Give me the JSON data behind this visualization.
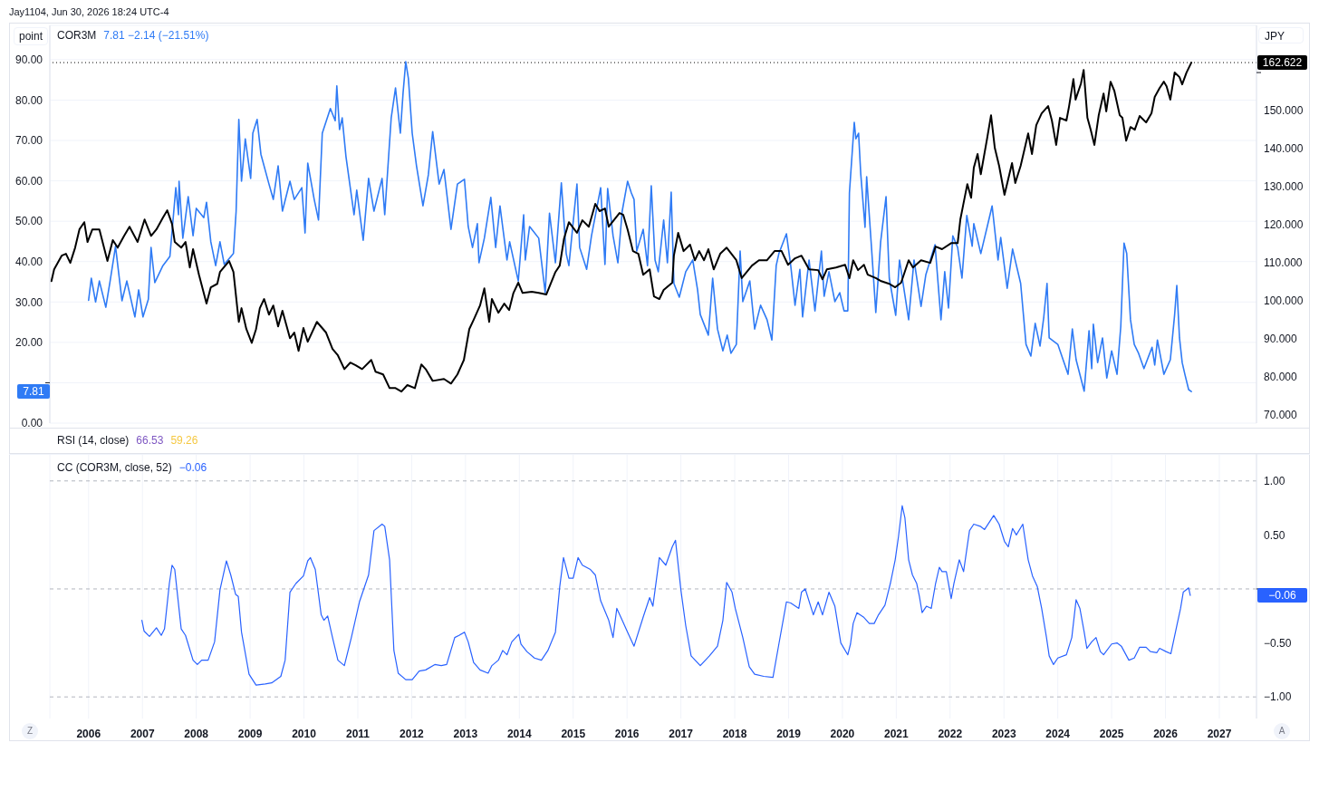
{
  "chart_data": [
    {
      "type": "line",
      "title": "COR3M",
      "subtitle": "7.81 −2.14 (−21.51%)",
      "ylabel": "point",
      "y2label": "JPY",
      "annotations": [
        "7.81",
        "162.622",
        "Jay1104, Jun 30, 2026 18:24 UTC-4"
      ],
      "xlim": [
        2005.28,
        2027.69
      ],
      "xticks": [
        2006,
        2007,
        2008,
        2009,
        2010,
        2011,
        2012,
        2013,
        2014,
        2015,
        2016,
        2017,
        2018,
        2019,
        2020,
        2021,
        2022,
        2023,
        2024,
        2025,
        2026,
        2027
      ],
      "ylim": [
        0,
        98.5
      ],
      "yticks": [
        {
          "value": 0,
          "label": "0.00"
        },
        {
          "value": 10,
          "label": null
        },
        {
          "value": 20,
          "label": "20.00"
        },
        {
          "value": 30,
          "label": "30.00"
        },
        {
          "value": 40,
          "label": "40.00"
        },
        {
          "value": 50,
          "label": "50.00"
        },
        {
          "value": 60,
          "label": "60.00"
        },
        {
          "value": 70,
          "label": "70.00"
        },
        {
          "value": 80,
          "label": "80.00"
        },
        {
          "value": 90,
          "label": "90.00"
        }
      ],
      "y2lim": [
        67.9,
        172.4
      ],
      "y2ticks": [
        {
          "value": 70,
          "label": "70.000"
        },
        {
          "value": 80,
          "label": "80.000"
        },
        {
          "value": 90,
          "label": "90.000"
        },
        {
          "value": 100,
          "label": "100.000"
        },
        {
          "value": 110,
          "label": "110.000"
        },
        {
          "value": 120,
          "label": "120.000"
        },
        {
          "value": 130,
          "label": "130.000"
        },
        {
          "value": 140,
          "label": "140.000"
        },
        {
          "value": 150,
          "label": "150.000"
        },
        {
          "value": 160,
          "label": null
        }
      ],
      "grid": true,
      "tick_labels": "y",
      "ref_lines": [
        {
          "axis": "y2",
          "value": 162.622,
          "color": "#000000",
          "line_style": "dotted"
        }
      ],
      "series": [
        {
          "color": "#2f7bf5",
          "axis": "y",
          "x": [
            2006.0,
            2006.05,
            2006.13,
            2006.2,
            2006.32,
            2006.4,
            2006.5,
            2006.62,
            2006.71,
            2006.86,
            2006.93,
            2007.01,
            2007.11,
            2007.16,
            2007.23,
            2007.38,
            2007.51,
            2007.62,
            2007.67,
            2007.68,
            2007.75,
            2007.85,
            2007.94,
            2008.0,
            2008.14,
            2008.19,
            2008.27,
            2008.36,
            2008.44,
            2008.52,
            2008.69,
            2008.74,
            2008.79,
            2008.84,
            2008.91,
            2009.01,
            2009.05,
            2009.13,
            2009.2,
            2009.35,
            2009.43,
            2009.52,
            2009.6,
            2009.74,
            2009.82,
            2009.96,
            2010.02,
            2010.07,
            2010.19,
            2010.27,
            2010.34,
            2010.49,
            2010.58,
            2010.61,
            2010.66,
            2010.71,
            2010.78,
            2010.86,
            2010.93,
            2010.98,
            2011.1,
            2011.2,
            2011.3,
            2011.45,
            2011.5,
            2011.62,
            2011.7,
            2011.79,
            2011.84,
            2011.89,
            2011.94,
            2012.01,
            2012.09,
            2012.21,
            2012.31,
            2012.39,
            2012.51,
            2012.6,
            2012.73,
            2012.85,
            2012.98,
            2013.05,
            2013.13,
            2013.22,
            2013.25,
            2013.35,
            2013.47,
            2013.56,
            2013.64,
            2013.77,
            2013.82,
            2013.98,
            2014.08,
            2014.11,
            2014.19,
            2014.36,
            2014.48,
            2014.56,
            2014.67,
            2014.78,
            2014.87,
            2014.92,
            2015.07,
            2015.12,
            2015.25,
            2015.34,
            2015.51,
            2015.59,
            2015.64,
            2015.74,
            2015.83,
            2015.91,
            2016.01,
            2016.08,
            2016.13,
            2016.18,
            2016.3,
            2016.38,
            2016.45,
            2016.52,
            2016.58,
            2016.68,
            2016.75,
            2016.82,
            2016.87,
            2016.97,
            2017.09,
            2017.22,
            2017.31,
            2017.36,
            2017.51,
            2017.59,
            2017.68,
            2017.78,
            2017.86,
            2017.93,
            2018.03,
            2018.1,
            2018.15,
            2018.28,
            2018.37,
            2018.48,
            2018.6,
            2018.69,
            2018.77,
            2018.82,
            2018.96,
            2019.04,
            2019.12,
            2019.21,
            2019.26,
            2019.38,
            2019.49,
            2019.61,
            2019.66,
            2019.75,
            2019.86,
            2019.95,
            2020.03,
            2020.1,
            2020.13,
            2020.22,
            2020.25,
            2020.3,
            2020.34,
            2020.42,
            2020.45,
            2020.54,
            2020.62,
            2020.71,
            2020.81,
            2020.87,
            2020.99,
            2021.06,
            2021.23,
            2021.33,
            2021.46,
            2021.55,
            2021.72,
            2021.83,
            2021.9,
            2021.97,
            2022.05,
            2022.14,
            2022.22,
            2022.31,
            2022.41,
            2022.44,
            2022.57,
            2022.69,
            2022.78,
            2022.89,
            2022.94,
            2023.06,
            2023.16,
            2023.31,
            2023.41,
            2023.5,
            2023.58,
            2023.67,
            2023.74,
            2023.8,
            2023.84,
            2024.0,
            2024.19,
            2024.27,
            2024.34,
            2024.49,
            2024.58,
            2024.63,
            2024.66,
            2024.74,
            2024.83,
            2024.91,
            2025.0,
            2025.1,
            2025.17,
            2025.23,
            2025.28,
            2025.35,
            2025.42,
            2025.5,
            2025.6,
            2025.75,
            2025.8,
            2025.85,
            2025.97,
            2026.09,
            2026.17,
            2026.21,
            2026.26,
            2026.31,
            2026.36,
            2026.43,
            2026.48
          ],
          "values": [
            30.4,
            35.9,
            30.0,
            35.2,
            28.7,
            35.2,
            43.8,
            30.3,
            35.2,
            26.3,
            33.0,
            26.3,
            30.7,
            43.5,
            34.8,
            39.0,
            41.3,
            58.3,
            51.6,
            59.9,
            45.8,
            56.1,
            46.4,
            53.2,
            50.9,
            54.7,
            44.9,
            39.0,
            44.9,
            39.3,
            42.0,
            52.5,
            75.2,
            59.9,
            70.4,
            60.6,
            71.8,
            75.2,
            66.6,
            59.2,
            55.4,
            63.7,
            52.5,
            59.9,
            55.4,
            58.3,
            47.1,
            64.4,
            55.4,
            50.3,
            71.8,
            77.9,
            74.9,
            83.5,
            72.7,
            75.6,
            66.0,
            58.3,
            51.6,
            57.7,
            45.3,
            60.6,
            52.5,
            60.6,
            51.6,
            75.6,
            83.0,
            71.8,
            81.7,
            89.5,
            85.3,
            71.8,
            63.7,
            53.8,
            61.5,
            72.2,
            59.2,
            62.8,
            48.0,
            59.2,
            60.4,
            48.7,
            43.5,
            49.4,
            39.7,
            45.8,
            55.9,
            43.5,
            53.8,
            40.4,
            44.9,
            35.2,
            51.6,
            40.4,
            48.7,
            45.8,
            32.3,
            52.0,
            39.7,
            59.5,
            42.0,
            39.0,
            59.2,
            43.5,
            38.1,
            46.4,
            58.3,
            39.3,
            58.1,
            46.4,
            39.7,
            52.5,
            59.9,
            57.0,
            55.4,
            42.6,
            48.0,
            39.0,
            58.8,
            40.4,
            37.5,
            50.3,
            39.7,
            57.2,
            34.6,
            31.2,
            37.5,
            40.4,
            33.0,
            26.9,
            21.8,
            35.9,
            23.3,
            17.9,
            21.8,
            17.3,
            19.5,
            42.6,
            30.1,
            35.2,
            23.3,
            29.2,
            25.6,
            20.6,
            39.0,
            42.0,
            46.9,
            39.0,
            29.2,
            38.1,
            26.3,
            40.4,
            27.8,
            42.6,
            31.4,
            37.5,
            30.1,
            32.3,
            27.8,
            27.8,
            57.0,
            74.5,
            70.4,
            71.8,
            61.8,
            48.5,
            61.0,
            43.5,
            27.4,
            44.9,
            56.1,
            35.9,
            26.7,
            40.4,
            25.6,
            40.4,
            28.9,
            36.8,
            44.2,
            25.6,
            37.5,
            28.5,
            46.4,
            43.5,
            35.9,
            51.4,
            43.8,
            49.4,
            42.0,
            48.7,
            53.8,
            40.4,
            46.0,
            33.4,
            43.1,
            34.6,
            19.5,
            16.6,
            24.7,
            19.1,
            26.3,
            34.6,
            21.1,
            19.5,
            12.1,
            23.3,
            15.7,
            7.9,
            22.9,
            13.5,
            24.5,
            15.0,
            21.1,
            11.2,
            17.9,
            12.1,
            24.0,
            44.6,
            42.0,
            25.6,
            19.5,
            17.3,
            13.5,
            18.8,
            14.4,
            20.6,
            12.1,
            15.7,
            26.9,
            34.1,
            21.1,
            15.0,
            12.1,
            8.3,
            7.81
          ]
        },
        {
          "color": "#000000",
          "axis": "y2",
          "x": [
            2005.31,
            2005.36,
            2005.5,
            2005.58,
            2005.66,
            2005.75,
            2005.83,
            2005.92,
            2005.98,
            2006.07,
            2006.2,
            2006.35,
            2006.45,
            2006.54,
            2006.66,
            2006.76,
            2006.91,
            2007.04,
            2007.16,
            2007.26,
            2007.38,
            2007.46,
            2007.55,
            2007.6,
            2007.72,
            2007.8,
            2007.88,
            2007.94,
            2008.05,
            2008.19,
            2008.27,
            2008.39,
            2008.44,
            2008.61,
            2008.69,
            2008.78,
            2008.79,
            2008.84,
            2008.93,
            2009.03,
            2009.11,
            2009.18,
            2009.26,
            2009.35,
            2009.43,
            2009.52,
            2009.6,
            2009.74,
            2009.82,
            2009.9,
            2009.99,
            2010.07,
            2010.24,
            2010.41,
            2010.53,
            2010.63,
            2010.75,
            2010.86,
            2010.96,
            2011.08,
            2011.25,
            2011.33,
            2011.47,
            2011.59,
            2011.7,
            2011.81,
            2011.92,
            2012.06,
            2012.18,
            2012.26,
            2012.39,
            2012.6,
            2012.73,
            2012.85,
            2012.97,
            2013.07,
            2013.15,
            2013.27,
            2013.35,
            2013.44,
            2013.49,
            2013.61,
            2013.72,
            2013.81,
            2013.89,
            2013.98,
            2014.06,
            2014.23,
            2014.36,
            2014.5,
            2014.67,
            2014.75,
            2014.83,
            2014.92,
            2015.07,
            2015.17,
            2015.29,
            2015.41,
            2015.49,
            2015.59,
            2015.66,
            2015.86,
            2015.93,
            2016.01,
            2016.11,
            2016.21,
            2016.3,
            2016.42,
            2016.5,
            2016.6,
            2016.68,
            2016.84,
            2016.87,
            2016.95,
            2017.05,
            2017.17,
            2017.26,
            2017.34,
            2017.43,
            2017.51,
            2017.61,
            2017.73,
            2017.85,
            2018.03,
            2018.13,
            2018.32,
            2018.45,
            2018.6,
            2018.74,
            2018.87,
            2018.99,
            2019.12,
            2019.24,
            2019.38,
            2019.55,
            2019.63,
            2019.71,
            2019.88,
            2020.05,
            2020.13,
            2020.2,
            2020.29,
            2020.4,
            2020.47,
            2020.62,
            2020.72,
            2020.87,
            2020.98,
            2021.09,
            2021.23,
            2021.31,
            2021.46,
            2021.63,
            2021.73,
            2021.85,
            2022.02,
            2022.14,
            2022.19,
            2022.24,
            2022.32,
            2022.39,
            2022.44,
            2022.51,
            2022.57,
            2022.69,
            2022.76,
            2022.83,
            2022.91,
            2023.01,
            2023.15,
            2023.21,
            2023.31,
            2023.4,
            2023.45,
            2023.52,
            2023.6,
            2023.7,
            2023.82,
            2023.89,
            2023.97,
            2024.04,
            2024.16,
            2024.21,
            2024.29,
            2024.33,
            2024.43,
            2024.48,
            2024.55,
            2024.61,
            2024.68,
            2024.76,
            2024.85,
            2024.9,
            2024.98,
            2025.05,
            2025.15,
            2025.2,
            2025.27,
            2025.35,
            2025.43,
            2025.52,
            2025.64,
            2025.74,
            2025.8,
            2025.89,
            2025.97,
            2026.02,
            2026.09,
            2026.17,
            2026.26,
            2026.31,
            2026.39,
            2026.48
          ],
          "values": [
            105.2,
            108.3,
            111.9,
            112.4,
            110.0,
            114.0,
            118.8,
            120.7,
            115.5,
            118.8,
            118.8,
            110.5,
            116.0,
            114.0,
            117.1,
            119.5,
            115.5,
            121.4,
            117.1,
            118.8,
            121.9,
            123.8,
            120.2,
            115.5,
            114.0,
            115.5,
            108.8,
            113.6,
            106.9,
            99.3,
            103.6,
            104.5,
            107.6,
            110.5,
            107.6,
            95.7,
            94.5,
            98.1,
            92.6,
            89.0,
            92.6,
            98.1,
            100.5,
            96.4,
            98.8,
            93.3,
            97.4,
            90.2,
            91.7,
            86.9,
            92.9,
            89.3,
            94.5,
            91.7,
            87.4,
            85.7,
            82.1,
            83.8,
            83.1,
            82.1,
            84.5,
            81.4,
            80.7,
            77.1,
            77.1,
            76.2,
            77.9,
            77.1,
            83.3,
            82.1,
            79.0,
            79.5,
            78.3,
            80.7,
            84.5,
            92.6,
            95.0,
            98.8,
            103.3,
            94.5,
            100.5,
            96.9,
            99.3,
            97.6,
            102.1,
            104.8,
            102.1,
            102.4,
            102.1,
            101.7,
            107.6,
            109.3,
            116.4,
            120.7,
            117.9,
            121.2,
            119.5,
            125.5,
            123.6,
            124.3,
            119.5,
            123.1,
            122.6,
            118.8,
            113.1,
            112.4,
            106.9,
            108.3,
            101.2,
            100.5,
            102.9,
            104.8,
            111.9,
            117.9,
            113.1,
            114.8,
            110.7,
            113.1,
            110.7,
            113.6,
            108.3,
            112.4,
            114.0,
            110.7,
            106.0,
            109.3,
            110.7,
            110.7,
            113.1,
            113.1,
            109.5,
            111.2,
            111.9,
            108.3,
            108.1,
            105.7,
            108.3,
            108.8,
            109.5,
            106.0,
            110.7,
            108.1,
            109.5,
            106.9,
            106.0,
            105.2,
            104.5,
            103.6,
            104.8,
            110.7,
            108.8,
            110.7,
            110.0,
            114.3,
            113.6,
            115.2,
            115.2,
            121.4,
            125.0,
            130.7,
            127.1,
            135.0,
            138.6,
            133.3,
            142.9,
            148.8,
            140.2,
            135.5,
            127.9,
            136.2,
            131.0,
            135.5,
            141.0,
            144.0,
            138.6,
            146.2,
            149.3,
            151.2,
            147.4,
            141.0,
            148.1,
            147.4,
            151.2,
            158.3,
            152.9,
            157.1,
            160.7,
            148.1,
            145.0,
            141.0,
            148.8,
            154.5,
            149.8,
            157.6,
            155.2,
            148.8,
            148.1,
            142.1,
            145.7,
            145.0,
            148.6,
            146.9,
            149.3,
            153.6,
            155.9,
            157.6,
            156.4,
            152.9,
            160.0,
            158.8,
            156.9,
            160.0,
            162.622
          ]
        }
      ]
    },
    {
      "type": "other",
      "title": "RSI (14, close)",
      "annotations": [
        "66.53",
        "59.26"
      ]
    },
    {
      "type": "line",
      "title": "CC (COR3M, close, 52)",
      "subtitle": "−0.06",
      "annotations": [
        "−0.06",
        "Z",
        "A"
      ],
      "xlim": [
        2005.28,
        2027.69
      ],
      "xticks": [
        2006,
        2007,
        2008,
        2009,
        2010,
        2011,
        2012,
        2013,
        2014,
        2015,
        2016,
        2017,
        2018,
        2019,
        2020,
        2021,
        2022,
        2023,
        2024,
        2025,
        2026,
        2027
      ],
      "ylim": [
        -1.2,
        1.25
      ],
      "yticks": [
        {
          "value": -1,
          "label": "−1.00"
        },
        {
          "value": -0.5,
          "label": "−0.50"
        },
        {
          "value": 0,
          "label": null
        },
        {
          "value": 0.5,
          "label": "0.50"
        },
        {
          "value": 1,
          "label": "1.00"
        }
      ],
      "grid": "x",
      "ref_lines": [
        {
          "axis": "y",
          "value": 1,
          "color": "#b2b5be",
          "line_style": "dashed"
        },
        {
          "axis": "y",
          "value": 0,
          "color": "#b2b5be",
          "line_style": "dashed"
        },
        {
          "axis": "y",
          "value": -1,
          "color": "#b2b5be",
          "line_style": "dashed"
        }
      ],
      "series": [
        {
          "color": "#2962ff",
          "x": [
            2006.99,
            2007.03,
            2007.13,
            2007.26,
            2007.35,
            2007.41,
            2007.5,
            2007.55,
            2007.6,
            2007.72,
            2007.8,
            2007.94,
            2008.02,
            2008.1,
            2008.22,
            2008.34,
            2008.44,
            2008.56,
            2008.64,
            2008.73,
            2008.78,
            2008.84,
            2008.98,
            2009.11,
            2009.28,
            2009.4,
            2009.57,
            2009.65,
            2009.74,
            2009.85,
            2009.99,
            2010.07,
            2010.12,
            2010.21,
            2010.32,
            2010.37,
            2010.44,
            2010.53,
            2010.63,
            2010.75,
            2010.88,
            2011.03,
            2011.2,
            2011.3,
            2011.45,
            2011.5,
            2011.59,
            2011.67,
            2011.75,
            2011.89,
            2012.01,
            2012.14,
            2012.26,
            2012.43,
            2012.55,
            2012.65,
            2012.8,
            2012.88,
            2012.98,
            2013.05,
            2013.15,
            2013.27,
            2013.42,
            2013.49,
            2013.61,
            2013.69,
            2013.77,
            2013.86,
            2013.99,
            2014.03,
            2014.14,
            2014.28,
            2014.41,
            2014.53,
            2014.67,
            2014.75,
            2014.82,
            2014.92,
            2015.0,
            2015.09,
            2015.17,
            2015.32,
            2015.41,
            2015.51,
            2015.66,
            2015.74,
            2015.81,
            2015.91,
            2016.01,
            2016.13,
            2016.3,
            2016.42,
            2016.48,
            2016.6,
            2016.72,
            2016.84,
            2016.9,
            2017.0,
            2017.09,
            2017.19,
            2017.36,
            2017.53,
            2017.68,
            2017.78,
            2017.85,
            2017.95,
            2018.01,
            2018.15,
            2018.27,
            2018.37,
            2018.54,
            2018.71,
            2018.82,
            2018.96,
            2019.04,
            2019.19,
            2019.24,
            2019.31,
            2019.46,
            2019.55,
            2019.63,
            2019.75,
            2019.86,
            2019.97,
            2020.1,
            2020.15,
            2020.2,
            2020.27,
            2020.39,
            2020.5,
            2020.59,
            2020.67,
            2020.79,
            2020.89,
            2020.98,
            2021.04,
            2021.11,
            2021.16,
            2021.23,
            2021.3,
            2021.38,
            2021.43,
            2021.48,
            2021.56,
            2021.65,
            2021.73,
            2021.8,
            2021.85,
            2021.93,
            2022.02,
            2022.07,
            2022.17,
            2022.25,
            2022.36,
            2022.44,
            2022.56,
            2022.64,
            2022.81,
            2022.91,
            2023.01,
            2023.08,
            2023.16,
            2023.23,
            2023.35,
            2023.45,
            2023.53,
            2023.62,
            2023.7,
            2023.79,
            2023.84,
            2023.92,
            2024.0,
            2024.16,
            2024.26,
            2024.34,
            2024.41,
            2024.49,
            2024.54,
            2024.63,
            2024.71,
            2024.79,
            2024.85,
            2025.0,
            2025.1,
            2025.18,
            2025.32,
            2025.42,
            2025.52,
            2025.64,
            2025.72,
            2025.84,
            2025.89,
            2026.01,
            2026.1,
            2026.21,
            2026.28,
            2026.33,
            2026.43,
            2026.46
          ],
          "values": [
            -0.29,
            -0.39,
            -0.44,
            -0.36,
            -0.43,
            -0.37,
            0.05,
            0.22,
            0.18,
            -0.37,
            -0.43,
            -0.66,
            -0.7,
            -0.66,
            -0.66,
            -0.49,
            -0.01,
            0.26,
            0.13,
            -0.05,
            -0.07,
            -0.4,
            -0.79,
            -0.89,
            -0.88,
            -0.87,
            -0.81,
            -0.66,
            -0.03,
            0.05,
            0.12,
            0.26,
            0.29,
            0.18,
            -0.24,
            -0.29,
            -0.25,
            -0.45,
            -0.66,
            -0.71,
            -0.45,
            -0.12,
            0.13,
            0.54,
            0.6,
            0.58,
            0.27,
            -0.57,
            -0.78,
            -0.84,
            -0.84,
            -0.76,
            -0.75,
            -0.7,
            -0.71,
            -0.7,
            -0.45,
            -0.43,
            -0.4,
            -0.49,
            -0.68,
            -0.75,
            -0.78,
            -0.71,
            -0.66,
            -0.57,
            -0.61,
            -0.49,
            -0.42,
            -0.51,
            -0.58,
            -0.64,
            -0.66,
            -0.57,
            -0.4,
            0.02,
            0.29,
            0.1,
            0.1,
            0.29,
            0.22,
            0.18,
            0.13,
            -0.11,
            -0.29,
            -0.45,
            -0.18,
            -0.29,
            -0.4,
            -0.53,
            -0.26,
            -0.08,
            -0.16,
            0.29,
            0.22,
            0.39,
            0.45,
            -0.01,
            -0.34,
            -0.62,
            -0.71,
            -0.62,
            -0.53,
            -0.29,
            0.06,
            -0.03,
            -0.18,
            -0.45,
            -0.72,
            -0.79,
            -0.81,
            -0.82,
            -0.51,
            -0.12,
            -0.13,
            -0.18,
            -0.03,
            0.0,
            -0.24,
            -0.12,
            -0.24,
            -0.03,
            -0.16,
            -0.5,
            -0.61,
            -0.51,
            -0.32,
            -0.22,
            -0.26,
            -0.32,
            -0.32,
            -0.24,
            -0.15,
            0.05,
            0.27,
            0.48,
            0.77,
            0.66,
            0.27,
            0.13,
            0.05,
            -0.07,
            -0.22,
            -0.16,
            -0.18,
            0.05,
            0.2,
            0.16,
            0.16,
            -0.09,
            0.05,
            0.27,
            0.16,
            0.54,
            0.6,
            0.58,
            0.55,
            0.68,
            0.6,
            0.44,
            0.39,
            0.56,
            0.5,
            0.6,
            0.27,
            0.12,
            0.02,
            -0.18,
            -0.45,
            -0.62,
            -0.7,
            -0.64,
            -0.61,
            -0.45,
            -0.1,
            -0.18,
            -0.4,
            -0.55,
            -0.49,
            -0.45,
            -0.58,
            -0.61,
            -0.51,
            -0.5,
            -0.53,
            -0.66,
            -0.64,
            -0.54,
            -0.54,
            -0.58,
            -0.59,
            -0.55,
            -0.58,
            -0.6,
            -0.34,
            -0.18,
            -0.03,
            0.01,
            -0.06
          ]
        }
      ]
    }
  ]
}
